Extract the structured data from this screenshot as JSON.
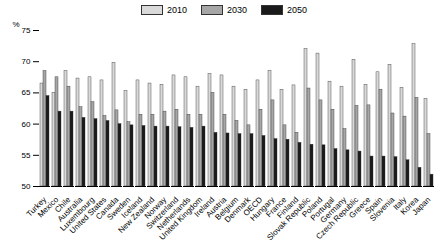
{
  "chart_data": {
    "type": "bar",
    "categories": [
      "Turkey",
      "Mexico",
      "Chile",
      "Australia",
      "Luxembourg",
      "United States",
      "Canada",
      "Sweden",
      "Iceland",
      "New Zealand",
      "Norway",
      "Switzerland",
      "Netherlands",
      "United Kingdom",
      "Ireland",
      "Austria",
      "Belgium",
      "Denmark",
      "OECD",
      "Hungary",
      "France",
      "Finland",
      "Slovak Republic",
      "Poland",
      "Portugal",
      "Germany",
      "Czech Republic",
      "Greece",
      "Spain",
      "Slovenia",
      "Italy",
      "Korea",
      "Japan"
    ],
    "series": [
      {
        "name": "2010",
        "color": "#d9d9d9",
        "values": [
          66.5,
          65,
          68.5,
          67.3,
          67.5,
          67,
          69.8,
          65.3,
          67,
          66.5,
          66.3,
          67.8,
          67.5,
          66,
          68,
          67.8,
          66,
          65.5,
          67,
          68.5,
          65.5,
          66.2,
          72,
          71.3,
          66.8,
          66,
          70.3,
          66.3,
          68.3,
          69.5,
          65.8,
          72.8,
          64
        ]
      },
      {
        "name": "2030",
        "color": "#a6a6a6",
        "values": [
          68.5,
          67.5,
          66,
          62.7,
          63.5,
          61.3,
          62.2,
          60.3,
          61.5,
          61.5,
          62,
          62.3,
          61.5,
          61.5,
          65,
          61.5,
          60.5,
          59.8,
          62.3,
          63.8,
          59.8,
          58.6,
          65.7,
          63.8,
          62.3,
          59.2,
          62.9,
          63,
          65.5,
          61.7,
          61.2,
          64.2,
          58.4
        ]
      },
      {
        "name": "2050",
        "color": "#1a1a1a",
        "values": [
          64.5,
          62,
          62,
          61,
          60.8,
          60.5,
          60,
          59.8,
          59.7,
          59.6,
          59.6,
          59.5,
          59.4,
          59.6,
          58.6,
          58.5,
          58.4,
          58.4,
          58.1,
          57.6,
          57.5,
          57,
          56.7,
          56.6,
          56,
          55.8,
          55.6,
          54.8,
          54.8,
          54.7,
          54.2,
          53,
          51.9
        ]
      }
    ],
    "ylabel": "%",
    "ylim": [
      50,
      75
    ],
    "yticks": [
      50,
      55,
      60,
      65,
      70,
      75
    ],
    "grid": false,
    "legend": "top"
  }
}
